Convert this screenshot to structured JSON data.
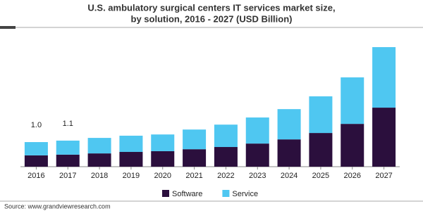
{
  "chart_data": {
    "type": "stacked_bar",
    "title": [
      "U.S. ambulatory surgical centers IT services market size,",
      "by solution, 2016 - 2027 (USD Billion)"
    ],
    "categories": [
      "2016",
      "2017",
      "2018",
      "2019",
      "2020",
      "2021",
      "2022",
      "2023",
      "2024",
      "2025",
      "2026",
      "2027"
    ],
    "series": [
      {
        "name": "Software",
        "color": "#2b0f3d",
        "values": [
          0.46,
          0.49,
          0.54,
          0.6,
          0.63,
          0.71,
          0.8,
          0.94,
          1.11,
          1.37,
          1.74,
          2.4
        ]
      },
      {
        "name": "Service",
        "color": "#4fc7f1",
        "values": [
          0.54,
          0.57,
          0.63,
          0.66,
          0.68,
          0.8,
          0.91,
          1.06,
          1.23,
          1.49,
          1.89,
          2.46
        ]
      }
    ],
    "total_labels": [
      {
        "value": 1.0,
        "label": "1.0"
      },
      {
        "value": 1.1,
        "label": "1.1"
      }
    ],
    "legend": "bottom",
    "source": "Source: www.grandviewresearch.com"
  }
}
